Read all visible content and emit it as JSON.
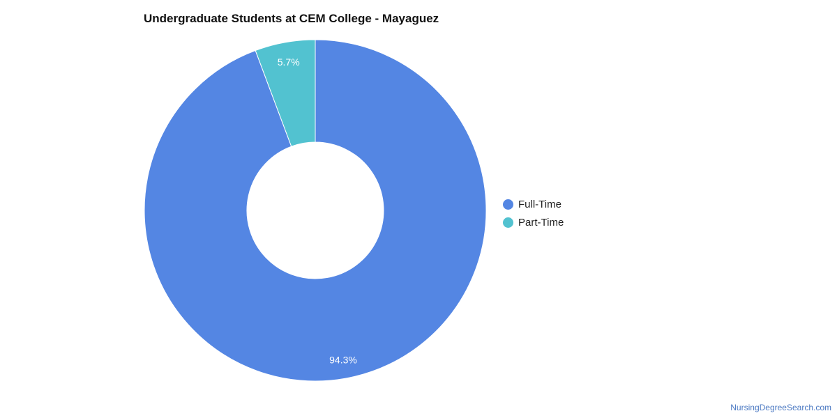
{
  "chart_data": {
    "type": "pie",
    "title": "Undergraduate Students at CEM College - Mayaguez",
    "donut": true,
    "legend_position": "right",
    "series": [
      {
        "name": "Full-Time",
        "value": 94.3,
        "label": "94.3%",
        "color": "#5486e3"
      },
      {
        "name": "Part-Time",
        "value": 5.7,
        "label": "5.7%",
        "color": "#52c2d0"
      }
    ]
  },
  "footer": {
    "source": "NursingDegreeSearch.com"
  }
}
